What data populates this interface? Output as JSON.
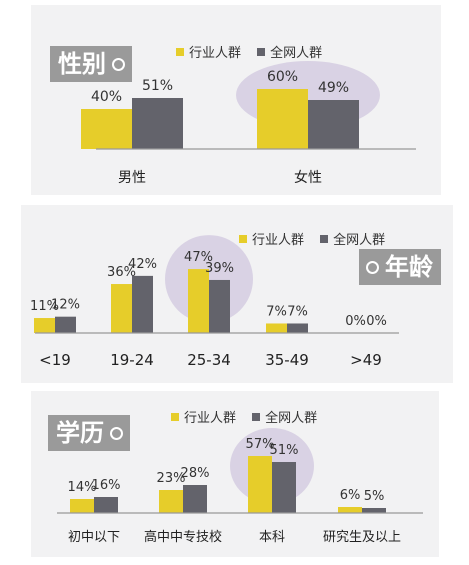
{
  "colors": {
    "industry": "#e6cd2a",
    "all": "#63636b",
    "highlight": "#d9d2e4",
    "axis": "#999999",
    "tag": "#9a9a9a"
  },
  "chart_data": [
    {
      "type": "bar",
      "tag": "性别",
      "categories": [
        "男性",
        "女性"
      ],
      "series": [
        {
          "name": "行业人群",
          "values": [
            40,
            60
          ]
        },
        {
          "name": "全网人群",
          "values": [
            51,
            49
          ]
        }
      ],
      "value_labels": [
        [
          "40%",
          "60%"
        ],
        [
          "51%",
          "49%"
        ]
      ],
      "highlight_category": "女性",
      "ylim": [
        0,
        100
      ],
      "legend": "top"
    },
    {
      "type": "bar",
      "tag": "年龄",
      "categories": [
        "<19",
        "19-24",
        "25-34",
        "35-49",
        ">49"
      ],
      "series": [
        {
          "name": "行业人群",
          "values": [
            11,
            36,
            47,
            7,
            0
          ]
        },
        {
          "name": "全网人群",
          "values": [
            12,
            42,
            39,
            7,
            0
          ]
        }
      ],
      "value_labels": [
        [
          "11%",
          "36%",
          "47%",
          "7%",
          "0%"
        ],
        [
          "12%",
          "42%",
          "39%",
          "7%",
          "0%"
        ]
      ],
      "highlight_category": "25-34",
      "ylim": [
        0,
        100
      ],
      "legend": "top"
    },
    {
      "type": "bar",
      "tag": "学历",
      "categories": [
        "初中以下",
        "高中中专技校",
        "本科",
        "研究生及以上"
      ],
      "series": [
        {
          "name": "行业人群",
          "values": [
            14,
            23,
            57,
            6
          ]
        },
        {
          "name": "全网人群",
          "values": [
            16,
            28,
            51,
            5
          ]
        }
      ],
      "value_labels": [
        [
          "14%",
          "23%",
          "57%",
          "6%"
        ],
        [
          "16%",
          "28%",
          "51%",
          "5%"
        ]
      ],
      "highlight_category": "本科",
      "ylim": [
        0,
        100
      ],
      "legend": "top"
    }
  ]
}
